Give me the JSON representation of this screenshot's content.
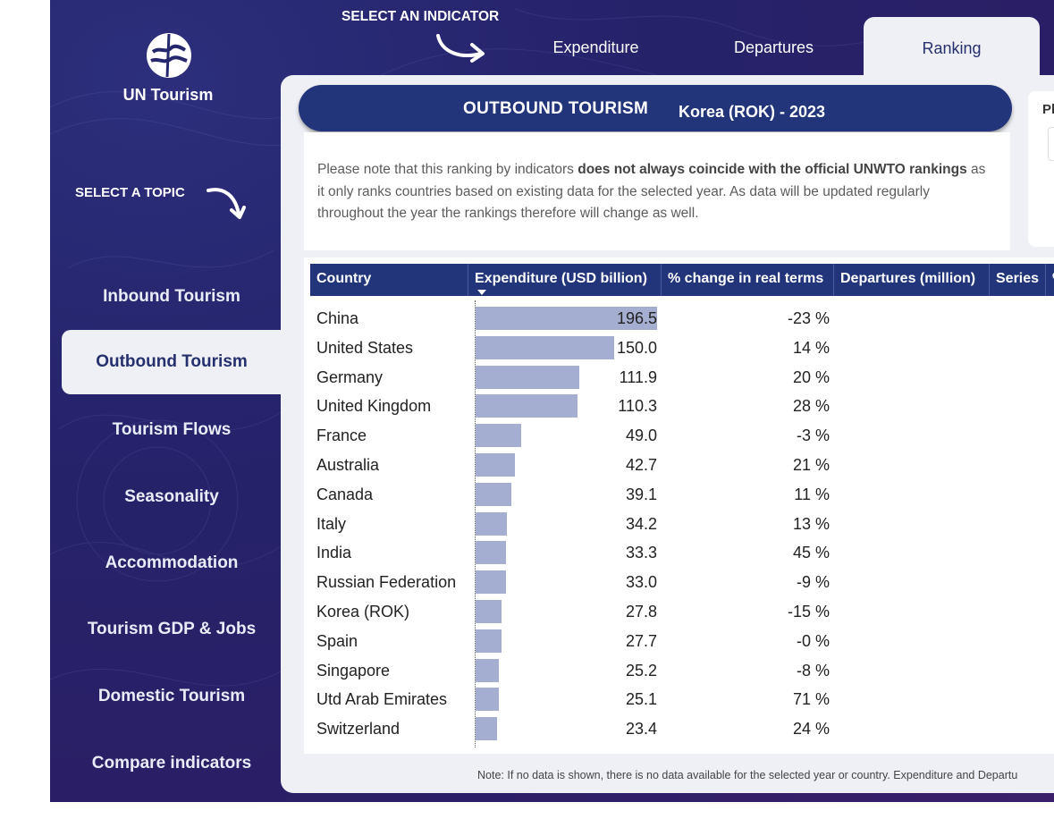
{
  "app": {
    "logo_text": "UN Tourism"
  },
  "topics": {
    "heading": "SELECT A TOPIC",
    "items": [
      {
        "label": "Inbound Tourism"
      },
      {
        "label": "Outbound Tourism"
      },
      {
        "label": "Tourism Flows"
      },
      {
        "label": "Seasonality"
      },
      {
        "label": "Accommodation"
      },
      {
        "label": "Tourism GDP & Jobs"
      },
      {
        "label": "Domestic Tourism"
      },
      {
        "label": "Compare indicators"
      }
    ],
    "active": "Outbound Tourism"
  },
  "indicators": {
    "heading": "SELECT AN INDICATOR",
    "tabs": [
      {
        "label": "Expenditure"
      },
      {
        "label": "Departures"
      },
      {
        "label": "Ranking"
      }
    ],
    "active": "Ranking"
  },
  "banner": {
    "title": "OUTBOUND TOURISM",
    "subtitle": "Korea (ROK) - 2023"
  },
  "note": {
    "part1": "Please note that this ranking by indicators ",
    "bold": "does not always coincide with the official UNWTO rankings",
    "part2": " as it only ranks countries based on existing data for the selected year. As data will be updated regularly throughout the year the rankings therefore will change as well."
  },
  "side_card": {
    "label_partial": "Pl"
  },
  "table": {
    "columns": [
      "Country",
      "Expenditure (USD billion)",
      "% change in real terms",
      "Departures (million)",
      "Series",
      "%"
    ],
    "sorted_column": "Expenditure (USD billion)",
    "bar_max": 196.5,
    "rows": [
      {
        "country": "China",
        "expenditure": "196.5",
        "value": 196.5,
        "change": "-23 %"
      },
      {
        "country": "United States",
        "expenditure": "150.0",
        "value": 150.0,
        "change": "14 %"
      },
      {
        "country": "Germany",
        "expenditure": "111.9",
        "value": 111.9,
        "change": "20 %"
      },
      {
        "country": "United Kingdom",
        "expenditure": "110.3",
        "value": 110.3,
        "change": "28 %"
      },
      {
        "country": "France",
        "expenditure": "49.0",
        "value": 49.0,
        "change": "-3 %"
      },
      {
        "country": "Australia",
        "expenditure": "42.7",
        "value": 42.7,
        "change": "21 %"
      },
      {
        "country": "Canada",
        "expenditure": "39.1",
        "value": 39.1,
        "change": "11 %"
      },
      {
        "country": "Italy",
        "expenditure": "34.2",
        "value": 34.2,
        "change": "13 %"
      },
      {
        "country": "India",
        "expenditure": "33.3",
        "value": 33.3,
        "change": "45 %"
      },
      {
        "country": "Russian Federation",
        "expenditure": "33.0",
        "value": 33.0,
        "change": "-9 %"
      },
      {
        "country": "Korea (ROK)",
        "expenditure": "27.8",
        "value": 27.8,
        "change": "-15 %"
      },
      {
        "country": "Spain",
        "expenditure": "27.7",
        "value": 27.7,
        "change": "-0 %"
      },
      {
        "country": "Singapore",
        "expenditure": "25.2",
        "value": 25.2,
        "change": "-8 %"
      },
      {
        "country": "Utd Arab Emirates",
        "expenditure": "25.1",
        "value": 25.1,
        "change": "71 %"
      },
      {
        "country": "Switzerland",
        "expenditure": "23.4",
        "value": 23.4,
        "change": "24 %"
      }
    ]
  },
  "footer_note": "Note: If no data is shown, there is no data available for the selected year or country. Expenditure and Departu",
  "colors": {
    "header_bg": "#22347a",
    "bar": "#a3aed0",
    "panel": "#eef0f5"
  }
}
